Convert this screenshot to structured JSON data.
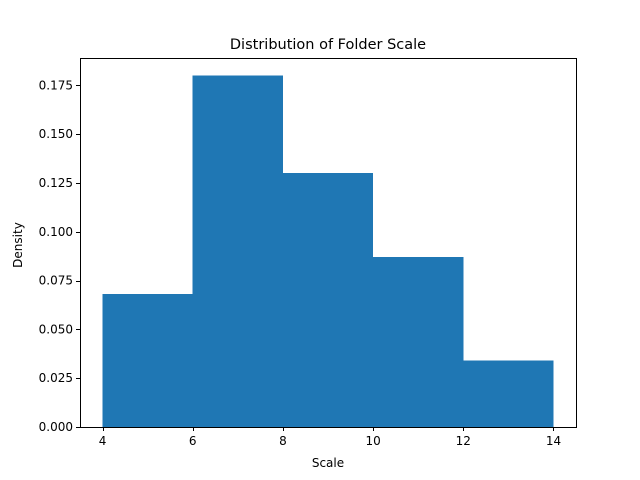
{
  "chart_data": {
    "type": "bar",
    "subtype": "histogram",
    "title": "Distribution of Folder Scale",
    "xlabel": "Scale",
    "ylabel": "Density",
    "bins": [
      {
        "start": 4,
        "end": 6,
        "value": 0.068
      },
      {
        "start": 6,
        "end": 8,
        "value": 0.18
      },
      {
        "start": 8,
        "end": 10,
        "value": 0.13
      },
      {
        "start": 10,
        "end": 12,
        "value": 0.087
      },
      {
        "start": 12,
        "end": 14,
        "value": 0.034
      }
    ],
    "xlim": [
      3.5,
      14.5
    ],
    "ylim": [
      0,
      0.189
    ],
    "xticks": [
      4,
      6,
      8,
      10,
      12,
      14
    ],
    "xtick_labels": [
      "4",
      "6",
      "8",
      "10",
      "12",
      "14"
    ],
    "yticks": [
      0,
      0.025,
      0.05,
      0.075,
      0.1,
      0.125,
      0.15,
      0.175
    ],
    "ytick_labels": [
      "0.000",
      "0.025",
      "0.050",
      "0.075",
      "0.100",
      "0.125",
      "0.150",
      "0.175"
    ],
    "bar_color": "#1f77b4",
    "grid": false,
    "legend": "none"
  }
}
